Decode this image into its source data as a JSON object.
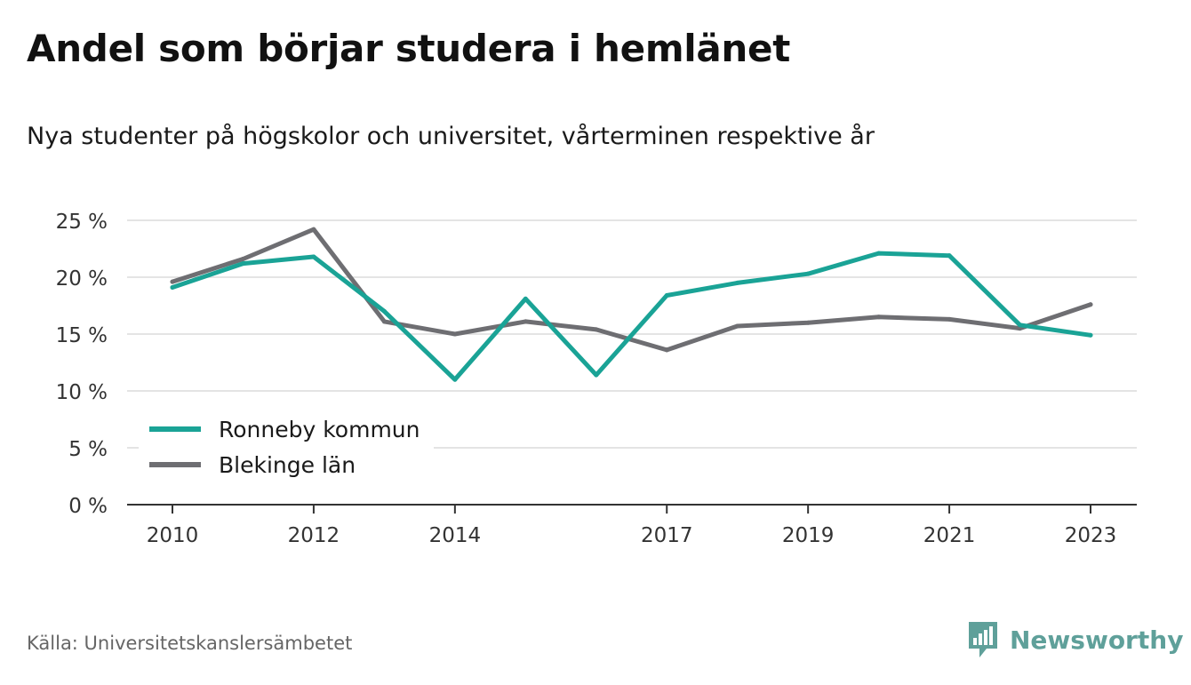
{
  "header": {
    "title": "Andel som börjar studera i hemlänet",
    "subtitle": "Nya studenter på högskolor och universitet, vårterminen respektive år"
  },
  "footer": {
    "source": "Källa: Universitetskanslersämbetet",
    "brand": "Newsworthy",
    "brand_icon": "bar-chart-speech-bubble-icon",
    "brand_color": "#5fa09a"
  },
  "chart_data": {
    "type": "line",
    "x": [
      2010,
      2011,
      2012,
      2013,
      2014,
      2015,
      2016,
      2017,
      2018,
      2019,
      2020,
      2021,
      2022,
      2023
    ],
    "x_tick_values": [
      2010,
      2012,
      2014,
      2017,
      2019,
      2021,
      2023
    ],
    "x_tick_labels": [
      "2010",
      "2012",
      "2014",
      "2017",
      "2019",
      "2021",
      "2023"
    ],
    "y_tick_values": [
      0,
      5,
      10,
      15,
      20,
      25
    ],
    "y_tick_labels": [
      "0 %",
      "5 %",
      "10 %",
      "15 %",
      "20 %",
      "25 %"
    ],
    "ylim": [
      0,
      25
    ],
    "grid": true,
    "legend_position": "bottom-left",
    "series": [
      {
        "name": "Ronneby kommun",
        "color": "#1aa396",
        "values": [
          19.1,
          21.2,
          21.8,
          17.0,
          11.0,
          18.1,
          11.4,
          18.4,
          19.5,
          20.3,
          22.1,
          21.9,
          15.8,
          14.9
        ]
      },
      {
        "name": "Blekinge län",
        "color": "#6e6e72",
        "values": [
          19.6,
          21.6,
          24.2,
          16.1,
          15.0,
          16.1,
          15.4,
          13.6,
          15.7,
          16.0,
          16.5,
          16.3,
          15.5,
          17.6
        ]
      }
    ]
  }
}
